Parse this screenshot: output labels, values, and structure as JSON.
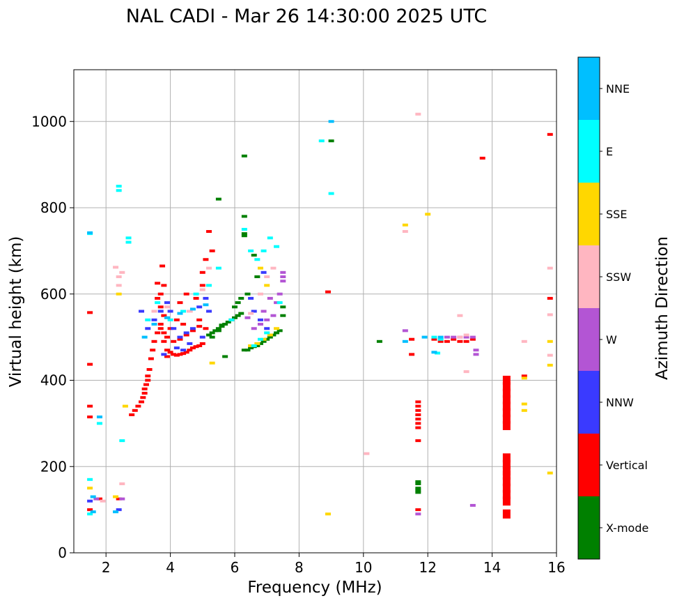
{
  "chart_data": {
    "type": "scatter",
    "title": "NAL CADI - Mar 26 14:30:00 2025 UTC",
    "xlabel": "Frequency (MHz)",
    "ylabel": "Virtual height (km)",
    "xlim": [
      1.0,
      16.0
    ],
    "ylim": [
      0,
      1120
    ],
    "xticks": [
      2,
      4,
      6,
      8,
      10,
      12,
      14,
      16
    ],
    "yticks": [
      0,
      200,
      400,
      600,
      800,
      1000
    ],
    "grid": true,
    "colorbar": {
      "title": "Azimuth Direction",
      "categories": [
        "X-mode",
        "Vertical",
        "NNW",
        "W",
        "SSW",
        "SSE",
        "E",
        "NNE"
      ],
      "colors": [
        "#008000",
        "#ff0000",
        "#3a3aff",
        "#b355d4",
        "#ffb6c1",
        "#ffd700",
        "#00ffff",
        "#00bfff"
      ]
    },
    "series": [
      {
        "name": "X-mode",
        "points": [
          [
            5.2,
            505
          ],
          [
            5.3,
            510
          ],
          [
            5.4,
            515
          ],
          [
            5.5,
            520
          ],
          [
            5.6,
            525
          ],
          [
            5.7,
            530
          ],
          [
            5.8,
            535
          ],
          [
            5.3,
            500
          ],
          [
            5.5,
            515
          ],
          [
            5.6,
            528
          ],
          [
            5.9,
            540
          ],
          [
            6.0,
            545
          ],
          [
            6.1,
            550
          ],
          [
            6.2,
            555
          ],
          [
            6.3,
            470
          ],
          [
            6.4,
            470
          ],
          [
            6.5,
            475
          ],
          [
            6.6,
            478
          ],
          [
            6.7,
            480
          ],
          [
            6.8,
            485
          ],
          [
            6.9,
            490
          ],
          [
            7.0,
            495
          ],
          [
            7.1,
            500
          ],
          [
            7.2,
            505
          ],
          [
            7.3,
            510
          ],
          [
            7.4,
            515
          ],
          [
            7.5,
            550
          ],
          [
            7.5,
            570
          ],
          [
            6.3,
            780
          ],
          [
            6.3,
            740
          ],
          [
            6.3,
            735
          ],
          [
            6.3,
            920
          ],
          [
            6.6,
            690
          ],
          [
            6.7,
            640
          ],
          [
            6.4,
            600
          ],
          [
            6.2,
            590
          ],
          [
            6.1,
            580
          ],
          [
            6.0,
            570
          ],
          [
            5.5,
            820
          ],
          [
            5.7,
            455
          ],
          [
            9.0,
            955
          ],
          [
            10.5,
            490
          ],
          [
            11.7,
            165
          ],
          [
            11.7,
            160
          ],
          [
            11.7,
            150
          ],
          [
            11.7,
            145
          ],
          [
            11.7,
            140
          ]
        ]
      },
      {
        "name": "Vertical",
        "points": [
          [
            1.5,
            100
          ],
          [
            1.5,
            340
          ],
          [
            1.5,
            315
          ],
          [
            1.5,
            437
          ],
          [
            1.5,
            557
          ],
          [
            1.8,
            125
          ],
          [
            2.4,
            125
          ],
          [
            2.8,
            320
          ],
          [
            2.9,
            330
          ],
          [
            3.0,
            340
          ],
          [
            3.1,
            350
          ],
          [
            3.15,
            360
          ],
          [
            3.2,
            370
          ],
          [
            3.2,
            380
          ],
          [
            3.25,
            390
          ],
          [
            3.3,
            400
          ],
          [
            3.3,
            410
          ],
          [
            3.35,
            425
          ],
          [
            3.4,
            450
          ],
          [
            3.45,
            470
          ],
          [
            3.5,
            490
          ],
          [
            3.6,
            510
          ],
          [
            3.7,
            530
          ],
          [
            3.8,
            550
          ],
          [
            3.6,
            590
          ],
          [
            3.7,
            600
          ],
          [
            3.8,
            620
          ],
          [
            3.6,
            625
          ],
          [
            3.7,
            570
          ],
          [
            3.8,
            490
          ],
          [
            3.9,
            470
          ],
          [
            4.0,
            465
          ],
          [
            4.1,
            460
          ],
          [
            4.2,
            458
          ],
          [
            4.3,
            460
          ],
          [
            4.4,
            462
          ],
          [
            4.5,
            465
          ],
          [
            4.6,
            470
          ],
          [
            4.7,
            475
          ],
          [
            4.8,
            478
          ],
          [
            4.9,
            480
          ],
          [
            5.0,
            485
          ],
          [
            3.9,
            455
          ],
          [
            4.0,
            520
          ],
          [
            4.2,
            540
          ],
          [
            4.4,
            530
          ],
          [
            4.6,
            560
          ],
          [
            4.8,
            590
          ],
          [
            5.0,
            620
          ],
          [
            5.1,
            680
          ],
          [
            5.2,
            745
          ],
          [
            5.3,
            700
          ],
          [
            5.0,
            650
          ],
          [
            4.9,
            540
          ],
          [
            4.5,
            600
          ],
          [
            4.3,
            580
          ],
          [
            3.7,
            520
          ],
          [
            3.8,
            510
          ],
          [
            3.9,
            500
          ],
          [
            4.1,
            490
          ],
          [
            4.3,
            495
          ],
          [
            4.5,
            505
          ],
          [
            4.7,
            515
          ],
          [
            4.9,
            525
          ],
          [
            5.1,
            520
          ],
          [
            3.75,
            665
          ],
          [
            8.9,
            605
          ],
          [
            11.5,
            460
          ],
          [
            11.5,
            495
          ],
          [
            11.7,
            350
          ],
          [
            11.7,
            340
          ],
          [
            11.7,
            330
          ],
          [
            11.7,
            320
          ],
          [
            11.7,
            310
          ],
          [
            11.7,
            300
          ],
          [
            11.7,
            290
          ],
          [
            11.7,
            260
          ],
          [
            11.7,
            100
          ],
          [
            12.2,
            495
          ],
          [
            12.4,
            490
          ],
          [
            12.6,
            490
          ],
          [
            12.8,
            495
          ],
          [
            13.0,
            490
          ],
          [
            13.2,
            490
          ],
          [
            13.4,
            495
          ],
          [
            13.7,
            915
          ],
          [
            14.45,
            400
          ],
          [
            14.45,
            385
          ],
          [
            14.45,
            370
          ],
          [
            14.45,
            355
          ],
          [
            14.45,
            340
          ],
          [
            14.45,
            325
          ],
          [
            14.45,
            310
          ],
          [
            14.45,
            295
          ],
          [
            14.45,
            220
          ],
          [
            14.45,
            205
          ],
          [
            14.45,
            190
          ],
          [
            14.45,
            180
          ],
          [
            14.45,
            165
          ],
          [
            14.45,
            150
          ],
          [
            14.45,
            135
          ],
          [
            14.45,
            120
          ],
          [
            14.45,
            90
          ],
          [
            15.0,
            410
          ],
          [
            15.8,
            970
          ],
          [
            15.8,
            590
          ]
        ]
      },
      {
        "name": "NNW",
        "points": [
          [
            3.3,
            520
          ],
          [
            3.5,
            540
          ],
          [
            3.7,
            560
          ],
          [
            3.9,
            580
          ],
          [
            4.1,
            520
          ],
          [
            4.3,
            500
          ],
          [
            4.5,
            510
          ],
          [
            4.7,
            520
          ],
          [
            4.9,
            570
          ],
          [
            5.1,
            590
          ],
          [
            4.0,
            560
          ],
          [
            4.2,
            475
          ],
          [
            4.4,
            470
          ],
          [
            3.8,
            460
          ],
          [
            4.6,
            485
          ],
          [
            5.0,
            500
          ],
          [
            5.2,
            560
          ],
          [
            6.6,
            560
          ],
          [
            6.8,
            540
          ],
          [
            7.0,
            520
          ],
          [
            6.5,
            590
          ],
          [
            6.9,
            650
          ],
          [
            1.5,
            120
          ],
          [
            2.4,
            100
          ],
          [
            3.1,
            560
          ]
        ]
      },
      {
        "name": "W",
        "points": [
          [
            7.5,
            650
          ],
          [
            7.5,
            640
          ],
          [
            7.5,
            630
          ],
          [
            7.4,
            600
          ],
          [
            7.3,
            580
          ],
          [
            7.2,
            550
          ],
          [
            7.0,
            540
          ],
          [
            6.8,
            530
          ],
          [
            6.6,
            520
          ],
          [
            6.4,
            545
          ],
          [
            6.9,
            560
          ],
          [
            7.1,
            590
          ],
          [
            12.6,
            500
          ],
          [
            12.8,
            500
          ],
          [
            13.0,
            500
          ],
          [
            13.2,
            500
          ],
          [
            13.4,
            500
          ],
          [
            13.5,
            470
          ],
          [
            13.5,
            460
          ],
          [
            13.4,
            110
          ],
          [
            11.7,
            90
          ],
          [
            11.3,
            515
          ],
          [
            1.7,
            125
          ],
          [
            2.5,
            125
          ]
        ]
      },
      {
        "name": "SSW",
        "points": [
          [
            2.4,
            640
          ],
          [
            2.4,
            620
          ],
          [
            2.5,
            650
          ],
          [
            2.3,
            662
          ],
          [
            3.5,
            560
          ],
          [
            3.9,
            570
          ],
          [
            4.6,
            560
          ],
          [
            5.0,
            610
          ],
          [
            5.2,
            660
          ],
          [
            6.5,
            555
          ],
          [
            6.8,
            600
          ],
          [
            7.0,
            640
          ],
          [
            7.2,
            660
          ],
          [
            11.3,
            745
          ],
          [
            11.7,
            1017
          ],
          [
            13.0,
            500
          ],
          [
            13.2,
            505
          ],
          [
            13.0,
            550
          ],
          [
            13.2,
            420
          ],
          [
            15.0,
            490
          ],
          [
            15.8,
            660
          ],
          [
            15.8,
            552
          ],
          [
            15.8,
            458
          ],
          [
            10.1,
            230
          ],
          [
            1.9,
            120
          ],
          [
            2.5,
            160
          ]
        ]
      },
      {
        "name": "SSE",
        "points": [
          [
            2.4,
            600
          ],
          [
            2.6,
            340
          ],
          [
            5.3,
            440
          ],
          [
            6.5,
            480
          ],
          [
            6.7,
            485
          ],
          [
            6.9,
            495
          ],
          [
            7.1,
            505
          ],
          [
            7.3,
            520
          ],
          [
            7.0,
            620
          ],
          [
            6.8,
            660
          ],
          [
            8.9,
            90
          ],
          [
            11.3,
            760
          ],
          [
            12.0,
            785
          ],
          [
            15.0,
            345
          ],
          [
            15.0,
            330
          ],
          [
            15.0,
            405
          ],
          [
            15.8,
            490
          ],
          [
            15.8,
            435
          ],
          [
            15.8,
            185
          ],
          [
            1.5,
            150
          ],
          [
            2.3,
            130
          ]
        ]
      },
      {
        "name": "E",
        "points": [
          [
            1.5,
            170
          ],
          [
            1.5,
            90
          ],
          [
            2.4,
            850
          ],
          [
            2.4,
            840
          ],
          [
            2.7,
            720
          ],
          [
            2.7,
            730
          ],
          [
            3.3,
            540
          ],
          [
            3.6,
            580
          ],
          [
            4.0,
            540
          ],
          [
            4.4,
            560
          ],
          [
            4.8,
            600
          ],
          [
            5.2,
            620
          ],
          [
            5.5,
            660
          ],
          [
            6.3,
            750
          ],
          [
            6.5,
            700
          ],
          [
            6.7,
            680
          ],
          [
            6.9,
            700
          ],
          [
            7.1,
            730
          ],
          [
            7.3,
            710
          ],
          [
            7.4,
            580
          ],
          [
            6.6,
            480
          ],
          [
            6.8,
            495
          ],
          [
            7.0,
            510
          ],
          [
            2.5,
            260
          ],
          [
            9.0,
            833
          ],
          [
            8.7,
            955
          ],
          [
            12.2,
            500
          ],
          [
            12.4,
            495
          ],
          [
            12.3,
            463
          ],
          [
            1.8,
            300
          ],
          [
            1.5,
            740
          ],
          [
            5.9,
            540
          ]
        ]
      },
      {
        "name": "NNE",
        "points": [
          [
            1.6,
            95
          ],
          [
            1.6,
            130
          ],
          [
            1.8,
            315
          ],
          [
            2.3,
            95
          ],
          [
            3.2,
            500
          ],
          [
            3.5,
            530
          ],
          [
            3.9,
            545
          ],
          [
            4.3,
            555
          ],
          [
            4.7,
            565
          ],
          [
            5.1,
            575
          ],
          [
            9.0,
            1000
          ],
          [
            11.3,
            490
          ],
          [
            11.9,
            500
          ],
          [
            12.2,
            465
          ],
          [
            12.4,
            500
          ],
          [
            1.5,
            742
          ]
        ]
      }
    ]
  }
}
